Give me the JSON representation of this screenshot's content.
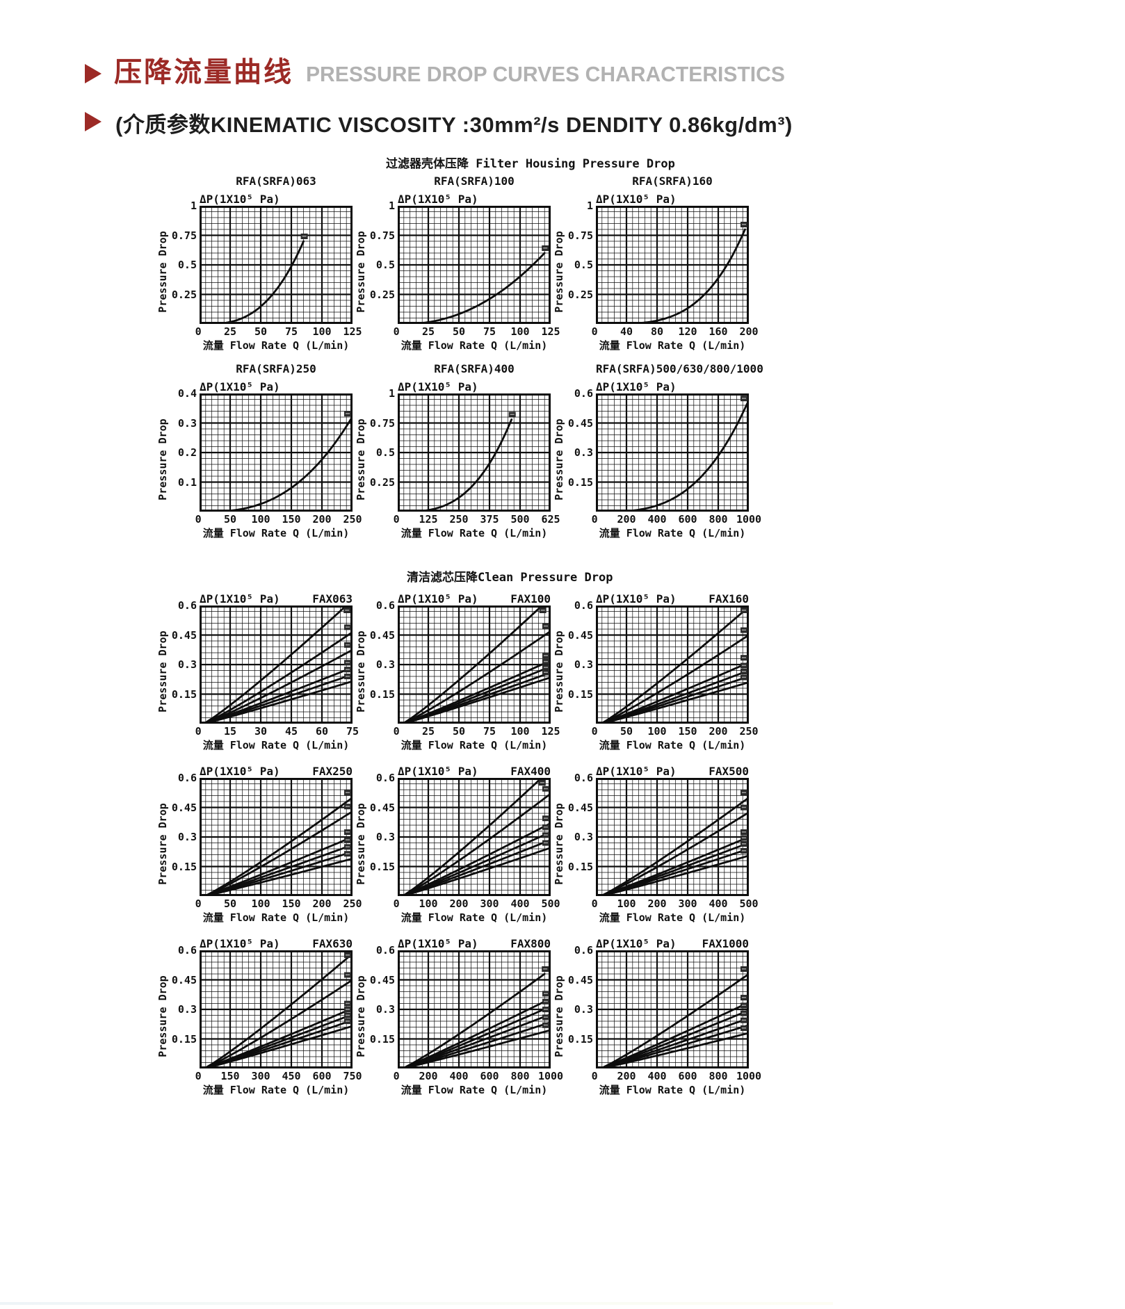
{
  "header": {
    "title_zh": "压降流量曲线",
    "title_en": "PRESSURE DROP CURVES CHARACTERISTICS",
    "subtitle": "(介质参数KINEMATIC VISCOSITY :30mm²/s DENDITY 0.86kg/dm³)",
    "accent_color": "#9c2a26",
    "title_en_color": "#b2b2b2"
  },
  "sections": {
    "housing": "过滤器壳体压降 Filter Housing Pressure Drop",
    "clean": "清洁滤芯压降Clean Pressure Drop"
  },
  "chart_data": {
    "common": {
      "type": "line",
      "dp_label": "ΔP(1X10⁵ Pa)",
      "y_axis_label": "Pressure Drop",
      "x_axis_label": "流量 Flow Rate  Q (L/min)",
      "grid": "on",
      "line_color": "#0d0d0d"
    },
    "charts": [
      {
        "id": "chart-rfa-srfa-063",
        "title": "RFA(SRFA)063",
        "title_align": "center",
        "group": "housing",
        "xlim": [
          0,
          125
        ],
        "xticks": [
          0,
          25,
          50,
          75,
          100,
          125
        ],
        "ylim": [
          0,
          1
        ],
        "yticks": [
          1,
          0.75,
          0.5,
          0.25
        ],
        "series": [
          {
            "name": "housing-curve",
            "x_start": 5,
            "x_end": 85,
            "y_end": 0.7,
            "shape_exp": 2.7
          }
        ]
      },
      {
        "id": "chart-rfa-srfa-100",
        "title": "RFA(SRFA)100",
        "title_align": "center",
        "group": "housing",
        "xlim": [
          0,
          125
        ],
        "xticks": [
          0,
          25,
          50,
          75,
          100,
          125
        ],
        "ylim": [
          0,
          1
        ],
        "yticks": [
          1,
          0.75,
          0.5,
          0.25
        ],
        "series": [
          {
            "name": "housing-curve",
            "x_start": 5,
            "x_end": 120,
            "y_end": 0.6,
            "shape_exp": 2.1
          }
        ]
      },
      {
        "id": "chart-rfa-srfa-160",
        "title": "RFA(SRFA)160",
        "title_align": "center",
        "group": "housing",
        "xlim": [
          0,
          200
        ],
        "xticks": [
          0,
          40,
          80,
          120,
          160,
          200
        ],
        "ylim": [
          0,
          1
        ],
        "yticks": [
          1,
          0.75,
          0.5,
          0.25
        ],
        "series": [
          {
            "name": "housing-curve",
            "x_start": 8,
            "x_end": 195,
            "y_end": 0.8,
            "shape_exp": 3.5
          }
        ]
      },
      {
        "id": "chart-rfa-srfa-250",
        "title": "RFA(SRFA)250",
        "title_align": "center",
        "group": "housing",
        "xlim": [
          0,
          250
        ],
        "xticks": [
          0,
          50,
          100,
          150,
          200,
          250
        ],
        "ylim": [
          0,
          0.4
        ],
        "yticks": [
          0.4,
          0.3,
          0.2,
          0.1
        ],
        "series": [
          {
            "name": "housing-curve",
            "x_start": 8,
            "x_end": 248,
            "y_end": 0.315,
            "shape_exp": 2.6
          }
        ]
      },
      {
        "id": "chart-rfa-srfa-400",
        "title": "RFA(SRFA)400",
        "title_align": "center",
        "group": "housing",
        "xlim": [
          0,
          625
        ],
        "xticks": [
          0,
          125,
          250,
          375,
          500,
          625
        ],
        "ylim": [
          0,
          1
        ],
        "yticks": [
          1,
          0.75,
          0.5,
          0.25
        ],
        "series": [
          {
            "name": "housing-curve",
            "x_start": 15,
            "x_end": 465,
            "y_end": 0.78,
            "shape_exp": 2.9
          }
        ]
      },
      {
        "id": "chart-rfa-srfa-500-630-800-1000",
        "title": "RFA(SRFA)500/630/800/1000",
        "title_align": "center",
        "group": "housing",
        "xlim": [
          0,
          1000
        ],
        "xticks": [
          0,
          200,
          400,
          600,
          800,
          1000
        ],
        "ylim": [
          0,
          0.6
        ],
        "yticks": [
          0.6,
          0.45,
          0.3,
          0.15
        ],
        "series": [
          {
            "name": "housing-curve",
            "x_start": 30,
            "x_end": 990,
            "y_end": 0.55,
            "shape_exp": 3.0
          }
        ]
      },
      {
        "id": "chart-fax063",
        "title": "FAX063",
        "title_align": "right",
        "group": "element",
        "xlim": [
          0,
          75
        ],
        "xticks": [
          0,
          15,
          30,
          45,
          60,
          75
        ],
        "ylim": [
          0,
          0.6
        ],
        "yticks": [
          0.6,
          0.45,
          0.3,
          0.15
        ],
        "series": [
          {
            "name": "element-curve-1",
            "x_start": 2,
            "x_end": 72,
            "y_end": 0.6,
            "shape_exp": 1.1
          },
          {
            "name": "element-curve-2",
            "x_start": 2,
            "x_end": 75,
            "y_end": 0.465,
            "shape_exp": 1.1
          },
          {
            "name": "element-curve-3",
            "x_start": 2,
            "x_end": 75,
            "y_end": 0.375,
            "shape_exp": 1.1
          },
          {
            "name": "element-curve-4",
            "x_start": 2,
            "x_end": 75,
            "y_end": 0.285,
            "shape_exp": 1.05
          },
          {
            "name": "element-curve-5",
            "x_start": 2,
            "x_end": 75,
            "y_end": 0.25,
            "shape_exp": 1.05
          },
          {
            "name": "element-curve-6",
            "x_start": 2,
            "x_end": 75,
            "y_end": 0.215,
            "shape_exp": 1.05
          }
        ]
      },
      {
        "id": "chart-fax100",
        "title": "FAX100",
        "title_align": "right",
        "group": "element",
        "xlim": [
          0,
          125
        ],
        "xticks": [
          0,
          25,
          50,
          75,
          100,
          125
        ],
        "ylim": [
          0,
          0.6
        ],
        "yticks": [
          0.6,
          0.45,
          0.3,
          0.15
        ],
        "series": [
          {
            "name": "element-curve-1",
            "x_start": 4,
            "x_end": 118,
            "y_end": 0.6,
            "shape_exp": 1.1
          },
          {
            "name": "element-curve-2",
            "x_start": 4,
            "x_end": 125,
            "y_end": 0.47,
            "shape_exp": 1.1
          },
          {
            "name": "element-curve-3",
            "x_start": 4,
            "x_end": 125,
            "y_end": 0.32,
            "shape_exp": 1.05
          },
          {
            "name": "element-curve-4",
            "x_start": 4,
            "x_end": 125,
            "y_end": 0.29,
            "shape_exp": 1.05
          },
          {
            "name": "element-curve-5",
            "x_start": 4,
            "x_end": 125,
            "y_end": 0.26,
            "shape_exp": 1.05
          },
          {
            "name": "element-curve-6",
            "x_start": 4,
            "x_end": 125,
            "y_end": 0.235,
            "shape_exp": 1.05
          }
        ]
      },
      {
        "id": "chart-fax160",
        "title": "FAX160",
        "title_align": "right",
        "group": "element",
        "xlim": [
          0,
          250
        ],
        "xticks": [
          0,
          50,
          100,
          150,
          200,
          250
        ],
        "ylim": [
          0,
          0.6
        ],
        "yticks": [
          0.6,
          0.45,
          0.3,
          0.15
        ],
        "series": [
          {
            "name": "element-curve-1",
            "x_start": 8,
            "x_end": 245,
            "y_end": 0.58,
            "shape_exp": 1.1
          },
          {
            "name": "element-curve-2",
            "x_start": 8,
            "x_end": 250,
            "y_end": 0.45,
            "shape_exp": 1.1
          },
          {
            "name": "element-curve-3",
            "x_start": 8,
            "x_end": 250,
            "y_end": 0.31,
            "shape_exp": 1.05
          },
          {
            "name": "element-curve-4",
            "x_start": 8,
            "x_end": 250,
            "y_end": 0.27,
            "shape_exp": 1.05
          },
          {
            "name": "element-curve-5",
            "x_start": 8,
            "x_end": 250,
            "y_end": 0.24,
            "shape_exp": 1.05
          },
          {
            "name": "element-curve-6",
            "x_start": 8,
            "x_end": 250,
            "y_end": 0.21,
            "shape_exp": 1.05
          }
        ]
      },
      {
        "id": "chart-fax250",
        "title": "FAX250",
        "title_align": "right",
        "group": "element",
        "xlim": [
          0,
          250
        ],
        "xticks": [
          0,
          50,
          100,
          150,
          200,
          250
        ],
        "ylim": [
          0,
          0.6
        ],
        "yticks": [
          0.6,
          0.45,
          0.3,
          0.15
        ],
        "series": [
          {
            "name": "element-curve-1",
            "x_start": 8,
            "x_end": 250,
            "y_end": 0.5,
            "shape_exp": 1.1
          },
          {
            "name": "element-curve-2",
            "x_start": 8,
            "x_end": 250,
            "y_end": 0.43,
            "shape_exp": 1.1
          },
          {
            "name": "element-curve-3",
            "x_start": 8,
            "x_end": 250,
            "y_end": 0.3,
            "shape_exp": 1.05
          },
          {
            "name": "element-curve-4",
            "x_start": 8,
            "x_end": 250,
            "y_end": 0.26,
            "shape_exp": 1.05
          },
          {
            "name": "element-curve-5",
            "x_start": 8,
            "x_end": 250,
            "y_end": 0.225,
            "shape_exp": 1.05
          },
          {
            "name": "element-curve-6",
            "x_start": 8,
            "x_end": 250,
            "y_end": 0.19,
            "shape_exp": 1.05
          }
        ]
      },
      {
        "id": "chart-fax400",
        "title": "FAX400",
        "title_align": "right",
        "group": "element",
        "xlim": [
          0,
          500
        ],
        "xticks": [
          0,
          100,
          200,
          300,
          400,
          500
        ],
        "ylim": [
          0,
          0.6
        ],
        "yticks": [
          0.6,
          0.45,
          0.3,
          0.15
        ],
        "series": [
          {
            "name": "element-curve-1",
            "x_start": 15,
            "x_end": 470,
            "y_end": 0.6,
            "shape_exp": 1.1
          },
          {
            "name": "element-curve-2",
            "x_start": 15,
            "x_end": 500,
            "y_end": 0.52,
            "shape_exp": 1.1
          },
          {
            "name": "element-curve-3",
            "x_start": 15,
            "x_end": 500,
            "y_end": 0.37,
            "shape_exp": 1.05
          },
          {
            "name": "element-curve-4",
            "x_start": 15,
            "x_end": 500,
            "y_end": 0.325,
            "shape_exp": 1.05
          },
          {
            "name": "element-curve-5",
            "x_start": 15,
            "x_end": 500,
            "y_end": 0.285,
            "shape_exp": 1.05
          },
          {
            "name": "element-curve-6",
            "x_start": 15,
            "x_end": 500,
            "y_end": 0.245,
            "shape_exp": 1.05
          }
        ]
      },
      {
        "id": "chart-fax500",
        "title": "FAX500",
        "title_align": "right",
        "group": "element",
        "xlim": [
          0,
          500
        ],
        "xticks": [
          0,
          100,
          200,
          300,
          400,
          500
        ],
        "ylim": [
          0,
          0.6
        ],
        "yticks": [
          0.6,
          0.45,
          0.3,
          0.15
        ],
        "series": [
          {
            "name": "element-curve-1",
            "x_start": 15,
            "x_end": 500,
            "y_end": 0.5,
            "shape_exp": 1.1
          },
          {
            "name": "element-curve-2",
            "x_start": 15,
            "x_end": 500,
            "y_end": 0.425,
            "shape_exp": 1.1
          },
          {
            "name": "element-curve-3",
            "x_start": 15,
            "x_end": 500,
            "y_end": 0.3,
            "shape_exp": 1.05
          },
          {
            "name": "element-curve-4",
            "x_start": 15,
            "x_end": 500,
            "y_end": 0.27,
            "shape_exp": 1.05
          },
          {
            "name": "element-curve-5",
            "x_start": 15,
            "x_end": 500,
            "y_end": 0.24,
            "shape_exp": 1.05
          },
          {
            "name": "element-curve-6",
            "x_start": 15,
            "x_end": 500,
            "y_end": 0.205,
            "shape_exp": 1.05
          }
        ]
      },
      {
        "id": "chart-fax630",
        "title": "FAX630",
        "title_align": "right",
        "group": "element",
        "xlim": [
          0,
          750
        ],
        "xticks": [
          0,
          150,
          300,
          450,
          600,
          750
        ],
        "ylim": [
          0,
          0.6
        ],
        "yticks": [
          0.6,
          0.45,
          0.3,
          0.15
        ],
        "series": [
          {
            "name": "element-curve-1",
            "x_start": 22,
            "x_end": 735,
            "y_end": 0.57,
            "shape_exp": 1.1
          },
          {
            "name": "element-curve-2",
            "x_start": 22,
            "x_end": 750,
            "y_end": 0.45,
            "shape_exp": 1.1
          },
          {
            "name": "element-curve-3",
            "x_start": 22,
            "x_end": 750,
            "y_end": 0.305,
            "shape_exp": 1.05
          },
          {
            "name": "element-curve-4",
            "x_start": 22,
            "x_end": 750,
            "y_end": 0.275,
            "shape_exp": 1.05
          },
          {
            "name": "element-curve-5",
            "x_start": 22,
            "x_end": 750,
            "y_end": 0.245,
            "shape_exp": 1.05
          },
          {
            "name": "element-curve-6",
            "x_start": 22,
            "x_end": 750,
            "y_end": 0.215,
            "shape_exp": 1.05
          }
        ]
      },
      {
        "id": "chart-fax800",
        "title": "FAX800",
        "title_align": "right",
        "group": "element",
        "xlim": [
          0,
          1000
        ],
        "xticks": [
          0,
          200,
          400,
          600,
          800,
          1000
        ],
        "ylim": [
          0,
          0.6
        ],
        "yticks": [
          0.6,
          0.45,
          0.3,
          0.15
        ],
        "series": [
          {
            "name": "element-curve-1",
            "x_start": 30,
            "x_end": 960,
            "y_end": 0.48,
            "shape_exp": 1.1
          },
          {
            "name": "element-curve-2",
            "x_start": 30,
            "x_end": 1000,
            "y_end": 0.355,
            "shape_exp": 1.05
          },
          {
            "name": "element-curve-3",
            "x_start": 30,
            "x_end": 1000,
            "y_end": 0.315,
            "shape_exp": 1.05
          },
          {
            "name": "element-curve-4",
            "x_start": 30,
            "x_end": 1000,
            "y_end": 0.275,
            "shape_exp": 1.05
          },
          {
            "name": "element-curve-5",
            "x_start": 30,
            "x_end": 1000,
            "y_end": 0.235,
            "shape_exp": 1.05
          },
          {
            "name": "element-curve-6",
            "x_start": 30,
            "x_end": 1000,
            "y_end": 0.195,
            "shape_exp": 1.05
          }
        ]
      },
      {
        "id": "chart-fax1000",
        "title": "FAX1000",
        "title_align": "right",
        "group": "element",
        "xlim": [
          0,
          1000
        ],
        "xticks": [
          0,
          200,
          400,
          600,
          800,
          1000
        ],
        "ylim": [
          0,
          0.6
        ],
        "yticks": [
          0.6,
          0.45,
          0.3,
          0.15
        ],
        "series": [
          {
            "name": "element-curve-1",
            "x_start": 30,
            "x_end": 1000,
            "y_end": 0.48,
            "shape_exp": 1.1
          },
          {
            "name": "element-curve-2",
            "x_start": 30,
            "x_end": 1000,
            "y_end": 0.335,
            "shape_exp": 1.05
          },
          {
            "name": "element-curve-3",
            "x_start": 30,
            "x_end": 1000,
            "y_end": 0.295,
            "shape_exp": 1.05
          },
          {
            "name": "element-curve-4",
            "x_start": 30,
            "x_end": 1000,
            "y_end": 0.255,
            "shape_exp": 1.05
          },
          {
            "name": "element-curve-5",
            "x_start": 30,
            "x_end": 1000,
            "y_end": 0.22,
            "shape_exp": 1.05
          },
          {
            "name": "element-curve-6",
            "x_start": 30,
            "x_end": 1000,
            "y_end": 0.18,
            "shape_exp": 1.05
          }
        ]
      }
    ]
  }
}
